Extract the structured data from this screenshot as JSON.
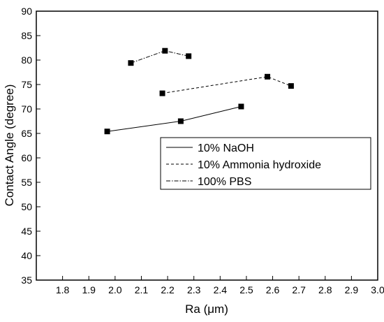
{
  "chart_data": {
    "type": "line",
    "title": "",
    "xlabel": "Ra (μm)",
    "ylabel": "Contact Angle (degree)",
    "xlim": [
      1.7,
      3.0
    ],
    "ylim": [
      35,
      90
    ],
    "xticks": [
      1.8,
      1.9,
      2.0,
      2.1,
      2.2,
      2.3,
      2.4,
      2.5,
      2.6,
      2.7,
      2.8,
      2.9,
      3.0
    ],
    "yticks": [
      35,
      40,
      45,
      50,
      55,
      60,
      65,
      70,
      75,
      80,
      85,
      90
    ],
    "xtick_labels": [
      "1.8",
      "1.9",
      "2.0",
      "2.1",
      "2.2",
      "2.3",
      "2.4",
      "2.5",
      "2.6",
      "2.7",
      "2.8",
      "2.9",
      "3.0"
    ],
    "ytick_labels": [
      "35",
      "40",
      "45",
      "50",
      "55",
      "60",
      "65",
      "70",
      "75",
      "80",
      "85",
      "90"
    ],
    "grid": false,
    "legend_position": "center-right",
    "series": [
      {
        "name": "10% NaOH",
        "line_style": "solid",
        "marker": "square",
        "x": [
          1.97,
          2.25,
          2.48
        ],
        "y": [
          65.4,
          67.5,
          70.5
        ]
      },
      {
        "name": "10% Ammonia hydroxide",
        "line_style": "dashed",
        "marker": "square",
        "x": [
          2.18,
          2.58,
          2.67
        ],
        "y": [
          73.2,
          76.6,
          74.7
        ]
      },
      {
        "name": "100% PBS",
        "line_style": "dash-dot",
        "marker": "square",
        "x": [
          2.06,
          2.19,
          2.28
        ],
        "y": [
          79.4,
          81.9,
          80.8
        ]
      }
    ]
  }
}
